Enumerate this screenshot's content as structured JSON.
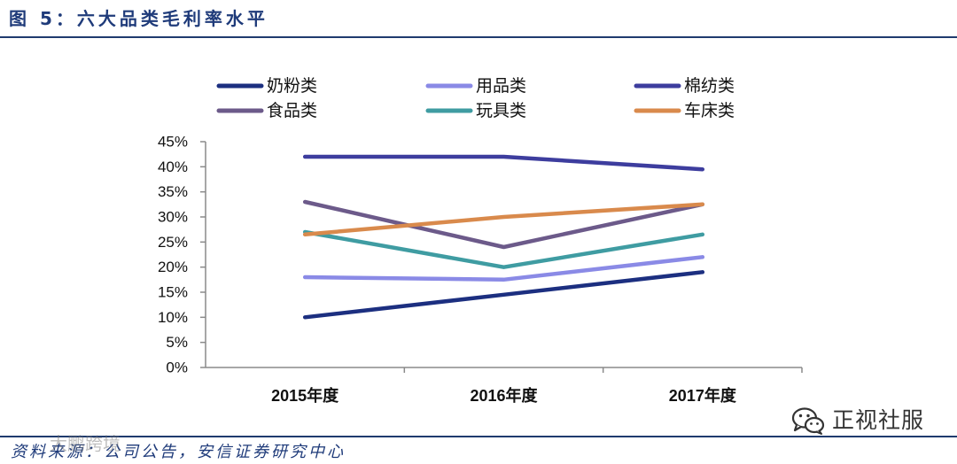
{
  "source": "资料来源：公司公告，安信证券研究中心",
  "watermark": {
    "brand_text": "正视社服",
    "faint_text": "大鹏跨境",
    "icon": "wechat-icon"
  },
  "colors": {
    "title": "#1f3b7a",
    "rule": "#1f3b6e",
    "source": "#1f3b7a"
  },
  "chart_data": {
    "type": "line",
    "title": "图 5：六大品类毛利率水平",
    "xlabel": "",
    "ylabel": "",
    "categories": [
      "2015年度",
      "2016年度",
      "2017年度"
    ],
    "ylim": [
      0,
      45
    ],
    "ytick_step": 5,
    "ytick_labels": [
      "0%",
      "5%",
      "10%",
      "15%",
      "20%",
      "25%",
      "30%",
      "35%",
      "40%",
      "45%"
    ],
    "grid": false,
    "legend_position": "top",
    "series": [
      {
        "name": "奶粉类",
        "color": "#1c2f80",
        "values": [
          10,
          14.5,
          19
        ]
      },
      {
        "name": "用品类",
        "color": "#8a8ae6",
        "values": [
          18,
          17.5,
          22
        ]
      },
      {
        "name": "棉纺类",
        "color": "#3d3d9e",
        "values": [
          42,
          42,
          39.5
        ]
      },
      {
        "name": "食品类",
        "color": "#6c5a8a",
        "values": [
          33,
          24,
          32.5
        ]
      },
      {
        "name": "玩具类",
        "color": "#3f9ca2",
        "values": [
          27,
          20,
          26.5
        ]
      },
      {
        "name": "车床类",
        "color": "#d98a4c",
        "values": [
          26.5,
          30,
          32.5
        ]
      }
    ]
  }
}
